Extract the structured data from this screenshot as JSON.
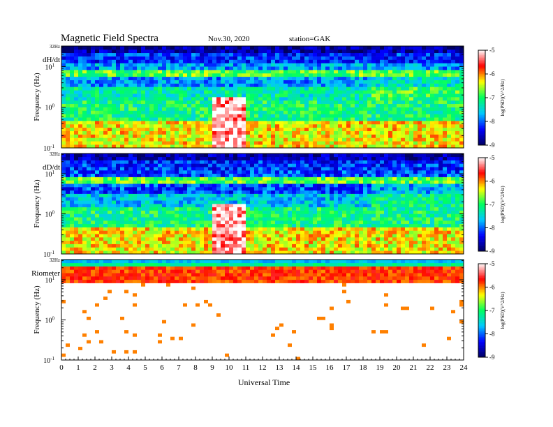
{
  "header": {
    "title": "Magnetic  Field  Spectra",
    "date": "Nov.30, 2020",
    "station": "station=GAK"
  },
  "chart_data": {
    "type": "heatmap",
    "x_axis": {
      "label": "Universal Time",
      "range": [
        0,
        24
      ],
      "ticks": [
        "0",
        "1",
        "2",
        "3",
        "4",
        "5",
        "6",
        "7",
        "8",
        "9",
        "10",
        "11",
        "12",
        "13",
        "14",
        "15",
        "16",
        "17",
        "18",
        "19",
        "20",
        "21",
        "22",
        "23",
        "24"
      ]
    },
    "y_axis": {
      "label": "Frequency  (Hz)",
      "scale": "log",
      "range": [
        0.1,
        32
      ],
      "tick_values": [
        0.1,
        1,
        10
      ],
      "top_label": "32Hz"
    },
    "colorbar": {
      "label": "log(PSD)(V^2/Hz)",
      "range": [
        -9,
        -5
      ],
      "ticks": [
        "-5",
        "-6",
        "-7",
        "-8",
        "-9"
      ],
      "colors": [
        "#000060",
        "#0000ff",
        "#00c8ff",
        "#00ff60",
        "#ffff00",
        "#ff0000",
        "#ffffff"
      ]
    },
    "panels": [
      {
        "name": "dH/dt",
        "bursts": [
          [
            8.9,
            11.1
          ]
        ],
        "band_hz": 7.5
      },
      {
        "name": "dD/dt",
        "bursts": [
          [
            8.9,
            11.1
          ]
        ],
        "band_hz": 7.5
      },
      {
        "name": "Riometer",
        "bursts": [],
        "band_hz": 14
      }
    ]
  }
}
